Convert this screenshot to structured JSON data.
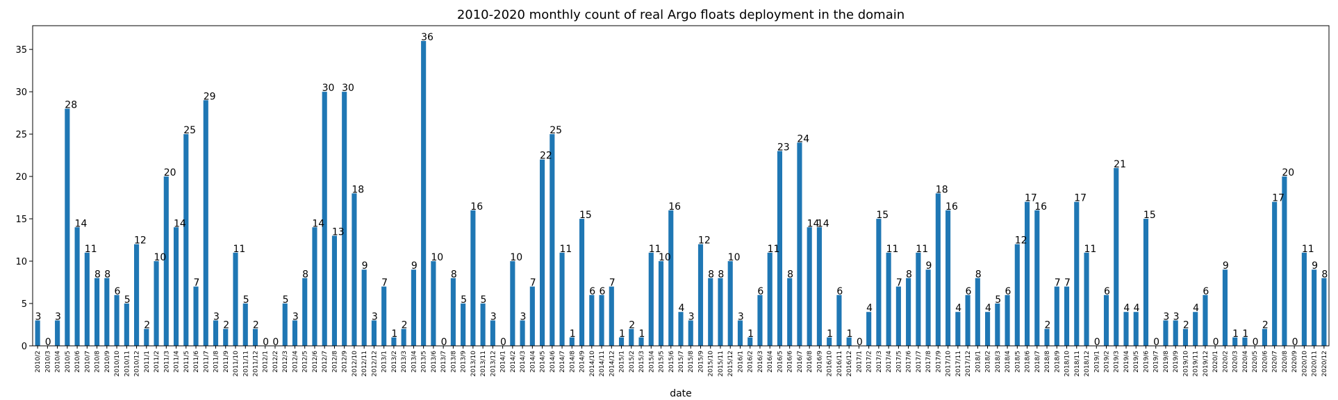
{
  "chart_data": {
    "type": "bar",
    "title": "2010-2020 monthly count of real Argo floats deployment in the domain",
    "xlabel": "date",
    "ylabel": "",
    "ylim": [
      0,
      37.8
    ],
    "yticks": [
      0,
      5,
      10,
      15,
      20,
      25,
      30,
      35
    ],
    "grid": false,
    "bar_color": "#1f77b4",
    "categories": [
      "2010/2",
      "2010/3",
      "2010/4",
      "2010/5",
      "2010/6",
      "2010/7",
      "2010/8",
      "2010/9",
      "2010/10",
      "2010/11",
      "2010/12",
      "2011/1",
      "2011/2",
      "2011/3",
      "2011/4",
      "2011/5",
      "2011/6",
      "2011/7",
      "2011/8",
      "2011/9",
      "2011/10",
      "2011/11",
      "2011/12",
      "2012/1",
      "2012/2",
      "2012/3",
      "2012/4",
      "2012/5",
      "2012/6",
      "2012/7",
      "2012/8",
      "2012/9",
      "2012/10",
      "2012/11",
      "2012/12",
      "2013/1",
      "2013/2",
      "2013/3",
      "2013/4",
      "2013/5",
      "2013/6",
      "2013/7",
      "2013/8",
      "2013/9",
      "2013/10",
      "2013/11",
      "2013/12",
      "2014/1",
      "2014/2",
      "2014/3",
      "2014/4",
      "2014/5",
      "2014/6",
      "2014/7",
      "2014/8",
      "2014/9",
      "2014/10",
      "2014/11",
      "2014/12",
      "2015/1",
      "2015/2",
      "2015/3",
      "2015/4",
      "2015/5",
      "2015/6",
      "2015/7",
      "2015/8",
      "2015/9",
      "2015/10",
      "2015/11",
      "2015/12",
      "2016/1",
      "2016/2",
      "2016/3",
      "2016/4",
      "2016/5",
      "2016/6",
      "2016/7",
      "2016/8",
      "2016/9",
      "2016/10",
      "2016/11",
      "2016/12",
      "2017/1",
      "2017/2",
      "2017/3",
      "2017/4",
      "2017/5",
      "2017/6",
      "2017/7",
      "2017/8",
      "2017/9",
      "2017/10",
      "2017/11",
      "2017/12",
      "2018/1",
      "2018/2",
      "2018/3",
      "2018/4",
      "2018/5",
      "2018/6",
      "2018/7",
      "2018/8",
      "2018/9",
      "2018/10",
      "2018/11",
      "2018/12",
      "2019/1",
      "2019/2",
      "2019/3",
      "2019/4",
      "2019/5",
      "2019/6",
      "2019/7",
      "2019/8",
      "2019/9",
      "2019/10",
      "2019/11",
      "2019/12",
      "2020/1",
      "2020/2",
      "2020/3",
      "2020/4",
      "2020/5",
      "2020/6",
      "2020/7",
      "2020/8",
      "2020/9",
      "2020/10",
      "2020/11",
      "2020/12"
    ],
    "values": [
      3,
      0,
      3,
      28,
      14,
      11,
      8,
      8,
      6,
      5,
      12,
      2,
      10,
      20,
      14,
      25,
      7,
      29,
      3,
      2,
      11,
      5,
      2,
      0,
      0,
      5,
      3,
      8,
      14,
      30,
      13,
      30,
      18,
      9,
      3,
      7,
      1,
      2,
      9,
      36,
      10,
      0,
      8,
      5,
      16,
      5,
      3,
      0,
      10,
      3,
      7,
      22,
      25,
      11,
      1,
      15,
      6,
      6,
      7,
      1,
      2,
      1,
      11,
      10,
      16,
      4,
      3,
      12,
      8,
      8,
      10,
      3,
      1,
      6,
      11,
      23,
      8,
      24,
      14,
      14,
      1,
      6,
      1,
      0,
      4,
      15,
      11,
      7,
      8,
      11,
      9,
      18,
      16,
      4,
      6,
      8,
      4,
      5,
      6,
      12,
      17,
      16,
      2,
      7,
      7,
      17,
      11,
      0,
      6,
      21,
      4,
      4,
      15,
      0,
      3,
      3,
      2,
      4,
      6,
      0,
      9,
      1,
      1,
      0,
      2,
      17,
      20,
      0,
      11,
      9,
      8
    ]
  }
}
